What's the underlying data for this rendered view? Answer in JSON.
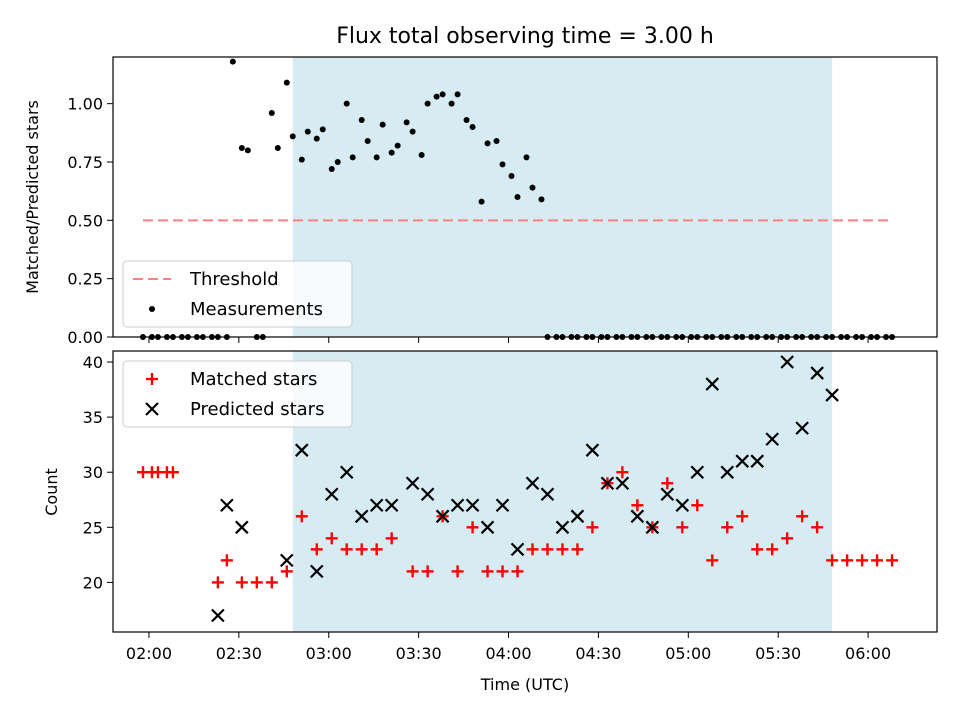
{
  "chart_data": {
    "title": "Flux total observing time = 3.00 h",
    "xlabel": "Time (UTC)",
    "x_ticks": [
      "02:00",
      "02:30",
      "03:00",
      "03:30",
      "04:00",
      "04:30",
      "05:00",
      "05:30",
      "06:00"
    ],
    "x_range": [
      "01:48",
      "06:23"
    ],
    "shaded_interval": [
      "02:48",
      "05:48"
    ],
    "shade_color": "#add8e6",
    "grid": false,
    "panels": [
      {
        "type": "scatter",
        "ylabel": "Matched/Predicted stars",
        "ylim": [
          0,
          1.2
        ],
        "y_ticks": [
          "0.00",
          "0.25",
          "0.50",
          "0.75",
          "1.00"
        ],
        "legend_position": "lower-left",
        "series": [
          {
            "name": "Threshold",
            "type": "line",
            "style": "dashed",
            "color": "#ff8080",
            "x": [
              "01:58",
              "06:08"
            ],
            "y": [
              0.5,
              0.5
            ]
          },
          {
            "name": "Measurements",
            "type": "scatter",
            "marker": "dot",
            "color": "#000000",
            "x": [
              "01:58",
              "02:01",
              "02:03",
              "02:06",
              "02:08",
              "02:11",
              "02:13",
              "02:16",
              "02:18",
              "02:21",
              "02:23",
              "02:26",
              "02:28",
              "02:31",
              "02:33",
              "02:36",
              "02:38",
              "02:41",
              "02:43",
              "02:46",
              "02:48",
              "02:51",
              "02:53",
              "02:56",
              "02:58",
              "03:01",
              "03:03",
              "03:06",
              "03:08",
              "03:11",
              "03:13",
              "03:16",
              "03:18",
              "03:21",
              "03:23",
              "03:26",
              "03:28",
              "03:31",
              "03:33",
              "03:36",
              "03:38",
              "03:41",
              "03:43",
              "03:46",
              "03:48",
              "03:51",
              "03:53",
              "03:56",
              "03:58",
              "04:01",
              "04:03",
              "04:06",
              "04:08",
              "04:11",
              "04:13",
              "04:16",
              "04:18",
              "04:21",
              "04:23",
              "04:26",
              "04:28",
              "04:31",
              "04:33",
              "04:36",
              "04:38",
              "04:41",
              "04:43",
              "04:46",
              "04:48",
              "04:51",
              "04:53",
              "04:56",
              "04:58",
              "05:01",
              "05:03",
              "05:06",
              "05:08",
              "05:11",
              "05:13",
              "05:16",
              "05:18",
              "05:21",
              "05:23",
              "05:26",
              "05:28",
              "05:31",
              "05:33",
              "05:36",
              "05:38",
              "05:41",
              "05:43",
              "05:46",
              "05:48",
              "05:51",
              "05:53",
              "05:56",
              "05:58",
              "06:01",
              "06:03",
              "06:06",
              "06:08"
            ],
            "y": [
              0,
              0,
              0,
              0,
              0,
              0,
              0,
              0,
              0,
              0,
              0,
              0,
              1.18,
              0.81,
              0.8,
              0,
              0,
              0.96,
              0.81,
              1.09,
              0.86,
              0.76,
              0.88,
              0.85,
              0.89,
              0.72,
              0.75,
              1.0,
              0.77,
              0.93,
              0.84,
              0.77,
              0.91,
              0.79,
              0.82,
              0.92,
              0.88,
              0.78,
              1.0,
              1.03,
              1.04,
              1.0,
              1.04,
              0.93,
              0.9,
              0.58,
              0.83,
              0.84,
              0.74,
              0.69,
              0.6,
              0.77,
              0.64,
              0.59,
              0,
              0,
              0,
              0,
              0,
              0,
              0,
              0,
              0,
              0,
              0,
              0,
              0,
              0,
              0,
              0,
              0,
              0,
              0,
              0,
              0,
              0,
              0,
              0,
              0,
              0,
              0,
              0,
              0,
              0,
              0,
              0,
              0,
              0,
              0,
              0,
              0,
              0,
              0,
              0,
              0,
              0,
              0,
              0,
              0,
              0,
              0
            ],
            "note_ignore": ""
          }
        ]
      },
      {
        "type": "scatter",
        "ylabel": "Count",
        "ylim": [
          15.5,
          41
        ],
        "y_ticks": [
          "20",
          "25",
          "30",
          "35",
          "40"
        ],
        "legend_position": "upper-left",
        "series": [
          {
            "name": "Matched stars",
            "marker": "plus",
            "color": "#ff0000",
            "x": [
              "01:58",
              "02:01",
              "02:03",
              "02:06",
              "02:08",
              "02:23",
              "02:26",
              "02:31",
              "02:36",
              "02:41",
              "02:46",
              "02:51",
              "02:56",
              "03:01",
              "03:06",
              "03:11",
              "03:16",
              "03:21",
              "03:28",
              "03:33",
              "03:38",
              "03:43",
              "03:48",
              "03:53",
              "03:58",
              "04:03",
              "04:08",
              "04:13",
              "04:18",
              "04:23",
              "04:28",
              "04:33",
              "04:38",
              "04:43",
              "04:48",
              "04:53",
              "04:58",
              "05:03",
              "05:08",
              "05:13",
              "05:18",
              "05:23",
              "05:28",
              "05:33",
              "05:38",
              "05:43",
              "05:48",
              "05:53",
              "05:58",
              "06:03",
              "06:08"
            ],
            "y": [
              30,
              30,
              30,
              30,
              30,
              20,
              22,
              20,
              20,
              20,
              21,
              26,
              23,
              24,
              23,
              23,
              23,
              24,
              21,
              21,
              26,
              21,
              25,
              21,
              21,
              21,
              23,
              23,
              23,
              23,
              25,
              29,
              30,
              27,
              25,
              29,
              25,
              27,
              22,
              25,
              26,
              23,
              23,
              24,
              26,
              25,
              22,
              22,
              22,
              22,
              22
            ]
          },
          {
            "name": "Predicted stars",
            "marker": "x",
            "color": "#000000",
            "x": [
              "02:23",
              "02:26",
              "02:31",
              "02:46",
              "02:51",
              "02:56",
              "03:01",
              "03:06",
              "03:11",
              "03:16",
              "03:21",
              "03:28",
              "03:33",
              "03:38",
              "03:43",
              "03:48",
              "03:53",
              "03:58",
              "04:03",
              "04:08",
              "04:13",
              "04:18",
              "04:23",
              "04:28",
              "04:33",
              "04:38",
              "04:43",
              "04:48",
              "04:53",
              "04:58",
              "05:03",
              "05:08",
              "05:13",
              "05:18",
              "05:23",
              "05:28",
              "05:33",
              "05:38",
              "05:43",
              "05:48"
            ],
            "y": [
              17,
              27,
              25,
              22,
              32,
              21,
              28,
              30,
              26,
              27,
              27,
              29,
              28,
              26,
              27,
              27,
              25,
              27,
              23,
              29,
              28,
              25,
              26,
              32,
              29,
              29,
              26,
              25,
              28,
              27,
              30,
              38,
              30,
              31,
              31,
              33,
              40,
              34,
              39,
              37
            ]
          }
        ]
      }
    ]
  }
}
